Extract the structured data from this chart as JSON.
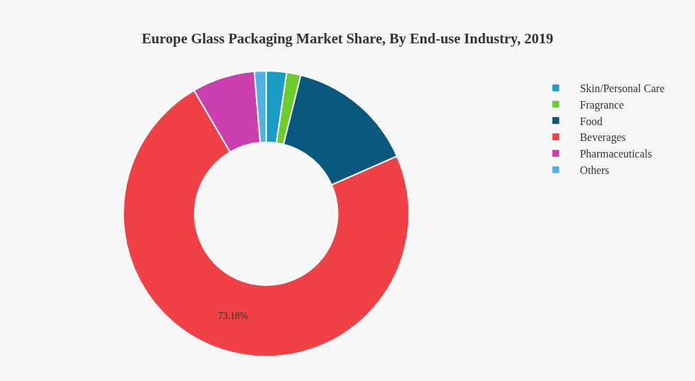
{
  "chart_data": {
    "type": "donut",
    "title": "Europe Glass Packaging Market Share, By End-use Industry, 2019",
    "categories": [
      "Skin/Personal Care",
      "Fragrance",
      "Food",
      "Beverages",
      "Pharmaceuticals",
      "Others"
    ],
    "values": [
      2.3,
      1.6,
      14.5,
      73.18,
      7.1,
      1.32
    ],
    "colors": [
      "#1a9cc4",
      "#6ccc2c",
      "#08587e",
      "#ef4146",
      "#cc3fae",
      "#4eb3e4"
    ],
    "value_labels": [
      null,
      null,
      null,
      "73.18%",
      null,
      null
    ],
    "legend": "top right"
  }
}
